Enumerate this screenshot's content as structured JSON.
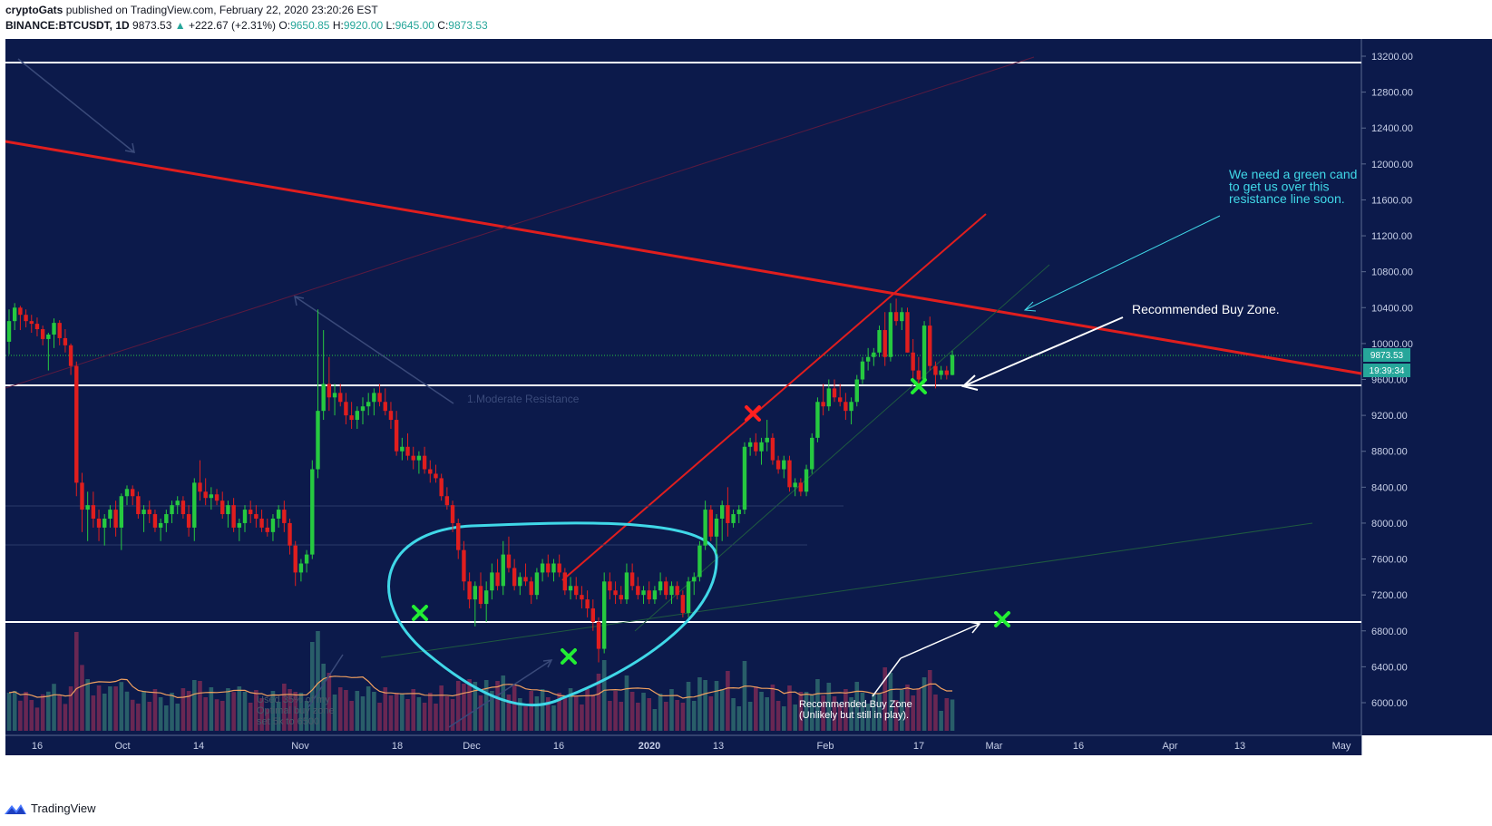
{
  "header": {
    "author": "cryptoGats",
    "published_text": "published on TradingView.com, February 22, 2020 23:20:26 EST",
    "symbol": "BINANCE:BTCUSDT, 1D",
    "last": "9873.53",
    "change": "+222.67 (+2.31%)",
    "open_label": "O:",
    "open": "9650.85",
    "high_label": "H:",
    "high": "9920.00",
    "low_label": "L:",
    "low": "9645.00",
    "close_label": "C:",
    "close": "9873.53"
  },
  "footer": {
    "brand": "TradingView",
    "logo_icon": "tradingview-logo-icon"
  },
  "colors": {
    "background": "#0c1a4b",
    "up": "#26c940",
    "down": "#e01e1e",
    "resistance": "#e01e1e",
    "support": "#ffffff",
    "annotation": "#40d8e8",
    "volume_up": "#2f6b6e",
    "volume_down": "#7a2a55",
    "volume_ma": "#f0a060"
  },
  "chart_data": {
    "type": "candlestick",
    "ylim": [
      5800,
      13400
    ],
    "y_ticks": [
      "13200.00",
      "12800.00",
      "12400.00",
      "12000.00",
      "11600.00",
      "11200.00",
      "10800.00",
      "10400.00",
      "10000.00",
      "9600.00",
      "9200.00",
      "8800.00",
      "8400.00",
      "8000.00",
      "7600.00",
      "7200.00",
      "6800.00",
      "6400.00",
      "6000.00"
    ],
    "x_ticks": [
      "16",
      "Oct",
      "14",
      "Nov",
      "18",
      "Dec",
      "16",
      "2020",
      "13",
      "Feb",
      "17",
      "Mar",
      "16",
      "Apr",
      "13",
      "May"
    ],
    "price_label": "9873.53",
    "countdown_label": "19:39:34",
    "candles": [
      {
        "o": 10020,
        "h": 10380,
        "l": 9880,
        "c": 10250
      },
      {
        "o": 10250,
        "h": 10450,
        "l": 10150,
        "c": 10400
      },
      {
        "o": 10400,
        "h": 10420,
        "l": 10150,
        "c": 10320
      },
      {
        "o": 10320,
        "h": 10380,
        "l": 10180,
        "c": 10250
      },
      {
        "o": 10250,
        "h": 10320,
        "l": 10120,
        "c": 10220
      },
      {
        "o": 10220,
        "h": 10290,
        "l": 10080,
        "c": 10160
      },
      {
        "o": 10160,
        "h": 10200,
        "l": 9980,
        "c": 10050
      },
      {
        "o": 10050,
        "h": 10120,
        "l": 9700,
        "c": 10100
      },
      {
        "o": 10100,
        "h": 10280,
        "l": 9950,
        "c": 10230
      },
      {
        "o": 10230,
        "h": 10260,
        "l": 9980,
        "c": 10060
      },
      {
        "o": 10060,
        "h": 10160,
        "l": 9900,
        "c": 9980
      },
      {
        "o": 9980,
        "h": 10000,
        "l": 9650,
        "c": 9750
      },
      {
        "o": 9750,
        "h": 9800,
        "l": 8300,
        "c": 8450
      },
      {
        "o": 8450,
        "h": 8560,
        "l": 7900,
        "c": 8150
      },
      {
        "o": 8150,
        "h": 8350,
        "l": 7800,
        "c": 8200
      },
      {
        "o": 8200,
        "h": 8350,
        "l": 7950,
        "c": 8050
      },
      {
        "o": 8050,
        "h": 8150,
        "l": 7800,
        "c": 7950
      },
      {
        "o": 7950,
        "h": 8100,
        "l": 7750,
        "c": 8050
      },
      {
        "o": 8050,
        "h": 8200,
        "l": 7950,
        "c": 8150
      },
      {
        "o": 8150,
        "h": 8250,
        "l": 7850,
        "c": 7950
      },
      {
        "o": 7950,
        "h": 8330,
        "l": 7700,
        "c": 8300
      },
      {
        "o": 8300,
        "h": 8420,
        "l": 8200,
        "c": 8380
      },
      {
        "o": 8380,
        "h": 8420,
        "l": 8200,
        "c": 8300
      },
      {
        "o": 8300,
        "h": 8350,
        "l": 8050,
        "c": 8100
      },
      {
        "o": 8100,
        "h": 8200,
        "l": 7900,
        "c": 8150
      },
      {
        "o": 8150,
        "h": 8250,
        "l": 8000,
        "c": 8100
      },
      {
        "o": 8100,
        "h": 8150,
        "l": 7900,
        "c": 7950
      },
      {
        "o": 7950,
        "h": 8050,
        "l": 7800,
        "c": 8000
      },
      {
        "o": 8000,
        "h": 8150,
        "l": 7900,
        "c": 8100
      },
      {
        "o": 8100,
        "h": 8250,
        "l": 8000,
        "c": 8200
      },
      {
        "o": 8200,
        "h": 8300,
        "l": 8100,
        "c": 8250
      },
      {
        "o": 8250,
        "h": 8300,
        "l": 8050,
        "c": 8100
      },
      {
        "o": 8100,
        "h": 8200,
        "l": 7850,
        "c": 7950
      },
      {
        "o": 7950,
        "h": 8500,
        "l": 7800,
        "c": 8450
      },
      {
        "o": 8450,
        "h": 8700,
        "l": 8250,
        "c": 8350
      },
      {
        "o": 8350,
        "h": 8500,
        "l": 8200,
        "c": 8280
      },
      {
        "o": 8280,
        "h": 8400,
        "l": 8150,
        "c": 8320
      },
      {
        "o": 8320,
        "h": 8380,
        "l": 8200,
        "c": 8250
      },
      {
        "o": 8250,
        "h": 8350,
        "l": 8050,
        "c": 8100
      },
      {
        "o": 8100,
        "h": 8250,
        "l": 7950,
        "c": 8200
      },
      {
        "o": 8200,
        "h": 8280,
        "l": 7900,
        "c": 7950
      },
      {
        "o": 7950,
        "h": 8050,
        "l": 7800,
        "c": 8000
      },
      {
        "o": 8000,
        "h": 8200,
        "l": 7900,
        "c": 8150
      },
      {
        "o": 8150,
        "h": 8250,
        "l": 8000,
        "c": 8100
      },
      {
        "o": 8100,
        "h": 8200,
        "l": 7950,
        "c": 8050
      },
      {
        "o": 8050,
        "h": 8150,
        "l": 7900,
        "c": 7950
      },
      {
        "o": 7950,
        "h": 8050,
        "l": 7850,
        "c": 7900
      },
      {
        "o": 7900,
        "h": 8100,
        "l": 7800,
        "c": 8050
      },
      {
        "o": 8050,
        "h": 8200,
        "l": 7950,
        "c": 8150
      },
      {
        "o": 8150,
        "h": 8250,
        "l": 7900,
        "c": 8000
      },
      {
        "o": 8000,
        "h": 8050,
        "l": 7650,
        "c": 7750
      },
      {
        "o": 7750,
        "h": 7800,
        "l": 7300,
        "c": 7450
      },
      {
        "o": 7450,
        "h": 7600,
        "l": 7350,
        "c": 7550
      },
      {
        "o": 7550,
        "h": 7700,
        "l": 7450,
        "c": 7650
      },
      {
        "o": 7650,
        "h": 8700,
        "l": 7600,
        "c": 8600
      },
      {
        "o": 8600,
        "h": 10380,
        "l": 8500,
        "c": 9250
      },
      {
        "o": 9250,
        "h": 10150,
        "l": 9150,
        "c": 9550
      },
      {
        "o": 9550,
        "h": 9850,
        "l": 9250,
        "c": 9400
      },
      {
        "o": 9400,
        "h": 9550,
        "l": 9200,
        "c": 9450
      },
      {
        "o": 9450,
        "h": 9550,
        "l": 9300,
        "c": 9350
      },
      {
        "o": 9350,
        "h": 9450,
        "l": 9100,
        "c": 9200
      },
      {
        "o": 9200,
        "h": 9350,
        "l": 9050,
        "c": 9150
      },
      {
        "o": 9150,
        "h": 9300,
        "l": 9050,
        "c": 9250
      },
      {
        "o": 9250,
        "h": 9400,
        "l": 9100,
        "c": 9300
      },
      {
        "o": 9300,
        "h": 9450,
        "l": 9200,
        "c": 9350
      },
      {
        "o": 9350,
        "h": 9500,
        "l": 9200,
        "c": 9450
      },
      {
        "o": 9450,
        "h": 9550,
        "l": 9300,
        "c": 9350
      },
      {
        "o": 9350,
        "h": 9500,
        "l": 9200,
        "c": 9250
      },
      {
        "o": 9250,
        "h": 9350,
        "l": 9050,
        "c": 9150
      },
      {
        "o": 9150,
        "h": 9250,
        "l": 8750,
        "c": 8800
      },
      {
        "o": 8800,
        "h": 8950,
        "l": 8700,
        "c": 8850
      },
      {
        "o": 8850,
        "h": 9000,
        "l": 8700,
        "c": 8750
      },
      {
        "o": 8750,
        "h": 8850,
        "l": 8600,
        "c": 8700
      },
      {
        "o": 8700,
        "h": 8800,
        "l": 8550,
        "c": 8750
      },
      {
        "o": 8750,
        "h": 8850,
        "l": 8550,
        "c": 8600
      },
      {
        "o": 8600,
        "h": 8700,
        "l": 8450,
        "c": 8550
      },
      {
        "o": 8550,
        "h": 8650,
        "l": 8450,
        "c": 8500
      },
      {
        "o": 8500,
        "h": 8550,
        "l": 8250,
        "c": 8300
      },
      {
        "o": 8300,
        "h": 8400,
        "l": 8150,
        "c": 8200
      },
      {
        "o": 8200,
        "h": 8250,
        "l": 7900,
        "c": 8000
      },
      {
        "o": 8000,
        "h": 8050,
        "l": 7600,
        "c": 7700
      },
      {
        "o": 7700,
        "h": 7800,
        "l": 7250,
        "c": 7350
      },
      {
        "o": 7350,
        "h": 7450,
        "l": 7050,
        "c": 7150
      },
      {
        "o": 7150,
        "h": 7350,
        "l": 6850,
        "c": 7300
      },
      {
        "o": 7300,
        "h": 7450,
        "l": 7050,
        "c": 7100
      },
      {
        "o": 7100,
        "h": 7350,
        "l": 6900,
        "c": 7250
      },
      {
        "o": 7250,
        "h": 7550,
        "l": 7150,
        "c": 7450
      },
      {
        "o": 7450,
        "h": 7600,
        "l": 7250,
        "c": 7300
      },
      {
        "o": 7300,
        "h": 7800,
        "l": 7200,
        "c": 7650
      },
      {
        "o": 7650,
        "h": 7850,
        "l": 7450,
        "c": 7500
      },
      {
        "o": 7500,
        "h": 7600,
        "l": 7250,
        "c": 7300
      },
      {
        "o": 7300,
        "h": 7450,
        "l": 7200,
        "c": 7400
      },
      {
        "o": 7400,
        "h": 7550,
        "l": 7300,
        "c": 7350
      },
      {
        "o": 7350,
        "h": 7400,
        "l": 7100,
        "c": 7200
      },
      {
        "o": 7200,
        "h": 7500,
        "l": 7150,
        "c": 7450
      },
      {
        "o": 7450,
        "h": 7600,
        "l": 7350,
        "c": 7550
      },
      {
        "o": 7550,
        "h": 7650,
        "l": 7400,
        "c": 7450
      },
      {
        "o": 7450,
        "h": 7600,
        "l": 7350,
        "c": 7550
      },
      {
        "o": 7550,
        "h": 7650,
        "l": 7400,
        "c": 7450
      },
      {
        "o": 7450,
        "h": 7500,
        "l": 7200,
        "c": 7250
      },
      {
        "o": 7250,
        "h": 7400,
        "l": 7150,
        "c": 7300
      },
      {
        "o": 7300,
        "h": 7400,
        "l": 7150,
        "c": 7200
      },
      {
        "o": 7200,
        "h": 7300,
        "l": 7050,
        "c": 7150
      },
      {
        "o": 7150,
        "h": 7250,
        "l": 6950,
        "c": 7050
      },
      {
        "o": 7050,
        "h": 7150,
        "l": 6800,
        "c": 6900
      },
      {
        "o": 6900,
        "h": 6950,
        "l": 6450,
        "c": 6600
      },
      {
        "o": 6600,
        "h": 7450,
        "l": 6550,
        "c": 7350
      },
      {
        "o": 7350,
        "h": 7450,
        "l": 7150,
        "c": 7250
      },
      {
        "o": 7250,
        "h": 7350,
        "l": 7100,
        "c": 7200
      },
      {
        "o": 7200,
        "h": 7300,
        "l": 7100,
        "c": 7150
      },
      {
        "o": 7150,
        "h": 7550,
        "l": 7100,
        "c": 7450
      },
      {
        "o": 7450,
        "h": 7550,
        "l": 7250,
        "c": 7300
      },
      {
        "o": 7300,
        "h": 7400,
        "l": 7150,
        "c": 7200
      },
      {
        "o": 7200,
        "h": 7300,
        "l": 7100,
        "c": 7250
      },
      {
        "o": 7250,
        "h": 7350,
        "l": 7100,
        "c": 7150
      },
      {
        "o": 7150,
        "h": 7300,
        "l": 7100,
        "c": 7250
      },
      {
        "o": 7250,
        "h": 7450,
        "l": 7200,
        "c": 7350
      },
      {
        "o": 7350,
        "h": 7400,
        "l": 7150,
        "c": 7200
      },
      {
        "o": 7200,
        "h": 7350,
        "l": 7100,
        "c": 7300
      },
      {
        "o": 7300,
        "h": 7350,
        "l": 7150,
        "c": 7200
      },
      {
        "o": 7200,
        "h": 7250,
        "l": 6950,
        "c": 7000
      },
      {
        "o": 7000,
        "h": 7400,
        "l": 6950,
        "c": 7350
      },
      {
        "o": 7350,
        "h": 7450,
        "l": 7200,
        "c": 7400
      },
      {
        "o": 7400,
        "h": 7800,
        "l": 7350,
        "c": 7750
      },
      {
        "o": 7750,
        "h": 8250,
        "l": 7700,
        "c": 8150
      },
      {
        "o": 8150,
        "h": 8200,
        "l": 7800,
        "c": 7850
      },
      {
        "o": 7850,
        "h": 8100,
        "l": 7650,
        "c": 8050
      },
      {
        "o": 8050,
        "h": 8250,
        "l": 7800,
        "c": 8200
      },
      {
        "o": 8200,
        "h": 8400,
        "l": 7850,
        "c": 8000
      },
      {
        "o": 8000,
        "h": 8150,
        "l": 7950,
        "c": 8100
      },
      {
        "o": 8100,
        "h": 8200,
        "l": 8000,
        "c": 8150
      },
      {
        "o": 8150,
        "h": 8900,
        "l": 8100,
        "c": 8850
      },
      {
        "o": 8850,
        "h": 8950,
        "l": 8750,
        "c": 8900
      },
      {
        "o": 8900,
        "h": 9000,
        "l": 8750,
        "c": 8800
      },
      {
        "o": 8800,
        "h": 8950,
        "l": 8650,
        "c": 8900
      },
      {
        "o": 8900,
        "h": 9150,
        "l": 8800,
        "c": 8950
      },
      {
        "o": 8950,
        "h": 9000,
        "l": 8650,
        "c": 8700
      },
      {
        "o": 8700,
        "h": 8750,
        "l": 8550,
        "c": 8600
      },
      {
        "o": 8600,
        "h": 8750,
        "l": 8500,
        "c": 8700
      },
      {
        "o": 8700,
        "h": 8750,
        "l": 8350,
        "c": 8400
      },
      {
        "o": 8400,
        "h": 8500,
        "l": 8300,
        "c": 8450
      },
      {
        "o": 8450,
        "h": 8500,
        "l": 8300,
        "c": 8350
      },
      {
        "o": 8350,
        "h": 8650,
        "l": 8300,
        "c": 8600
      },
      {
        "o": 8600,
        "h": 9000,
        "l": 8550,
        "c": 8950
      },
      {
        "o": 8950,
        "h": 9400,
        "l": 8900,
        "c": 9350
      },
      {
        "o": 9350,
        "h": 9550,
        "l": 9200,
        "c": 9300
      },
      {
        "o": 9300,
        "h": 9600,
        "l": 9250,
        "c": 9500
      },
      {
        "o": 9500,
        "h": 9600,
        "l": 9350,
        "c": 9400
      },
      {
        "o": 9400,
        "h": 9550,
        "l": 9300,
        "c": 9350
      },
      {
        "o": 9350,
        "h": 9450,
        "l": 9150,
        "c": 9250
      },
      {
        "o": 9250,
        "h": 9400,
        "l": 9100,
        "c": 9350
      },
      {
        "o": 9350,
        "h": 9650,
        "l": 9300,
        "c": 9600
      },
      {
        "o": 9600,
        "h": 9850,
        "l": 9550,
        "c": 9800
      },
      {
        "o": 9800,
        "h": 9950,
        "l": 9700,
        "c": 9850
      },
      {
        "o": 9850,
        "h": 9950,
        "l": 9750,
        "c": 9900
      },
      {
        "o": 9900,
        "h": 10200,
        "l": 9850,
        "c": 10150
      },
      {
        "o": 10150,
        "h": 10350,
        "l": 9750,
        "c": 9850
      },
      {
        "o": 9850,
        "h": 10450,
        "l": 9800,
        "c": 10350
      },
      {
        "o": 10350,
        "h": 10500,
        "l": 10200,
        "c": 10250
      },
      {
        "o": 10250,
        "h": 10400,
        "l": 10150,
        "c": 10350
      },
      {
        "o": 10350,
        "h": 10400,
        "l": 9900,
        "c": 9900
      },
      {
        "o": 9900,
        "h": 10050,
        "l": 9600,
        "c": 9700
      },
      {
        "o": 9700,
        "h": 9850,
        "l": 9500,
        "c": 9600
      },
      {
        "o": 9600,
        "h": 10250,
        "l": 9550,
        "c": 10200
      },
      {
        "o": 10200,
        "h": 10300,
        "l": 9700,
        "c": 9750
      },
      {
        "o": 9750,
        "h": 9800,
        "l": 9500,
        "c": 9650
      },
      {
        "o": 9650,
        "h": 9750,
        "l": 9600,
        "c": 9700
      },
      {
        "o": 9700,
        "h": 9750,
        "l": 9600,
        "c": 9650
      },
      {
        "o": 9650,
        "h": 9920,
        "l": 9645,
        "c": 9873.53
      }
    ],
    "lines": [
      {
        "name": "resistance",
        "color": "#e01e1e"
      },
      {
        "name": "trend",
        "color": "#e01e1e"
      },
      {
        "name": "support-high",
        "price": 13120,
        "color": "#ffffff"
      },
      {
        "name": "support-mid",
        "price": 9600,
        "color": "#ffffff"
      },
      {
        "name": "support-low",
        "price": 6900,
        "color": "#ffffff"
      }
    ],
    "annotations": {
      "green_candle_note": [
        "We need a green cand",
        "to get us over this",
        "resistance line soon."
      ],
      "buy_zone_main": "Recommended Buy Zone.",
      "buy_zone_low": [
        "Recommended Buy Zone",
        "(Unlikely but still in play)."
      ],
      "moderate_resistance": "1.Moderate Resistance",
      "faded_note": [
        "Used 35% of my",
        "Optimal buy zone",
        "set 5k to 6500"
      ]
    }
  }
}
